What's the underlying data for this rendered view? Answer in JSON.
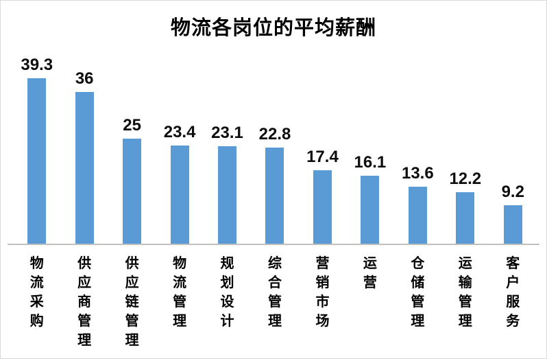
{
  "chart_data": {
    "type": "bar",
    "title": "物流各岗位的平均薪酬",
    "categories": [
      "物流采购",
      "供应商管理",
      "供应链管理",
      "物流管理",
      "规划设计",
      "综合管理",
      "营销市场",
      "运营",
      "仓储管理",
      "运输管理",
      "客户服务"
    ],
    "values": [
      39.3,
      36,
      25,
      23.4,
      23.1,
      22.8,
      17.4,
      16.1,
      13.6,
      12.2,
      9.2
    ],
    "value_labels": [
      "39.3",
      "36",
      "25",
      "23.4",
      "23.1",
      "22.8",
      "17.4",
      "16.1",
      "13.6",
      "12.2",
      "9.2"
    ],
    "xlabel": "",
    "ylabel": "",
    "ylim": [
      0,
      45
    ],
    "grid": false,
    "legend": false,
    "bar_color": "#5b9bd5",
    "axis_line_color": "#bfbfbf",
    "text_color": "#000000",
    "value_labels_shown": true,
    "category_text_direction": "vertical"
  }
}
